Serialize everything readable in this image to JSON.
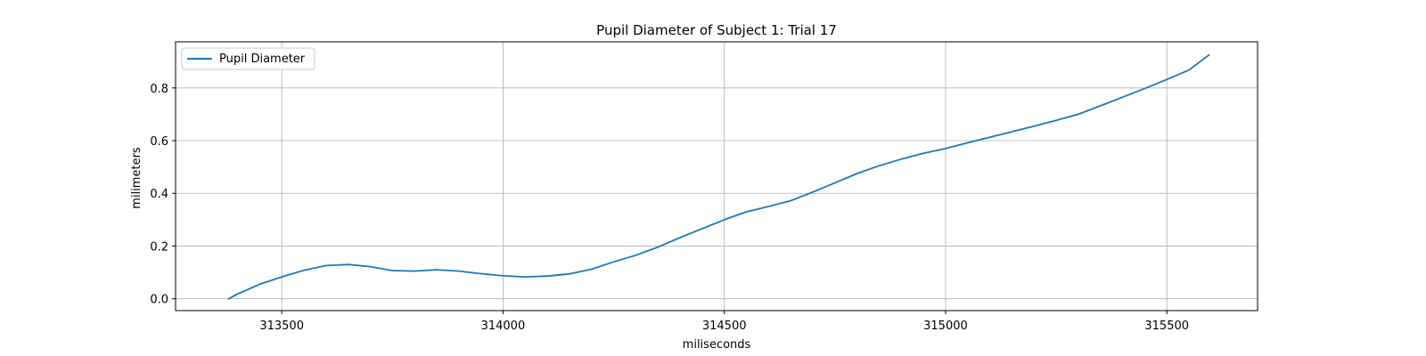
{
  "chart_data": {
    "type": "line",
    "title": "Pupil Diameter of Subject 1: Trial 17",
    "xlabel": "miliseconds",
    "ylabel": "milimeters",
    "xlim": [
      313260,
      315705
    ],
    "ylim": [
      -0.045,
      0.975
    ],
    "xticks": [
      313500,
      314000,
      314500,
      315000,
      315500
    ],
    "yticks": [
      0.0,
      0.2,
      0.4,
      0.6,
      0.8
    ],
    "xtick_labels": [
      "313500",
      "314000",
      "314500",
      "315000",
      "315500"
    ],
    "ytick_labels": [
      "0.0",
      "0.2",
      "0.4",
      "0.6",
      "0.8"
    ],
    "grid": true,
    "legend": {
      "position": "top-left",
      "entries": [
        "Pupil Diameter"
      ]
    },
    "series": [
      {
        "name": "Pupil Diameter",
        "color": "#1f77b4",
        "x": [
          313380,
          313400,
          313450,
          313500,
          313550,
          313600,
          313650,
          313700,
          313750,
          313800,
          313850,
          313900,
          313950,
          314000,
          314050,
          314100,
          314150,
          314200,
          314250,
          314300,
          314350,
          314400,
          314450,
          314500,
          314550,
          314600,
          314650,
          314700,
          314750,
          314800,
          314850,
          314900,
          314950,
          315000,
          315050,
          315100,
          315150,
          315200,
          315250,
          315300,
          315350,
          315400,
          315450,
          315500,
          315550,
          315595
        ],
        "y": [
          0.0,
          0.018,
          0.055,
          0.083,
          0.108,
          0.126,
          0.13,
          0.122,
          0.107,
          0.105,
          0.11,
          0.105,
          0.095,
          0.087,
          0.083,
          0.086,
          0.094,
          0.112,
          0.14,
          0.165,
          0.196,
          0.232,
          0.266,
          0.3,
          0.33,
          0.35,
          0.372,
          0.405,
          0.44,
          0.475,
          0.505,
          0.53,
          0.552,
          0.57,
          0.592,
          0.613,
          0.634,
          0.655,
          0.677,
          0.7,
          0.732,
          0.765,
          0.798,
          0.832,
          0.868,
          0.925
        ]
      }
    ]
  }
}
